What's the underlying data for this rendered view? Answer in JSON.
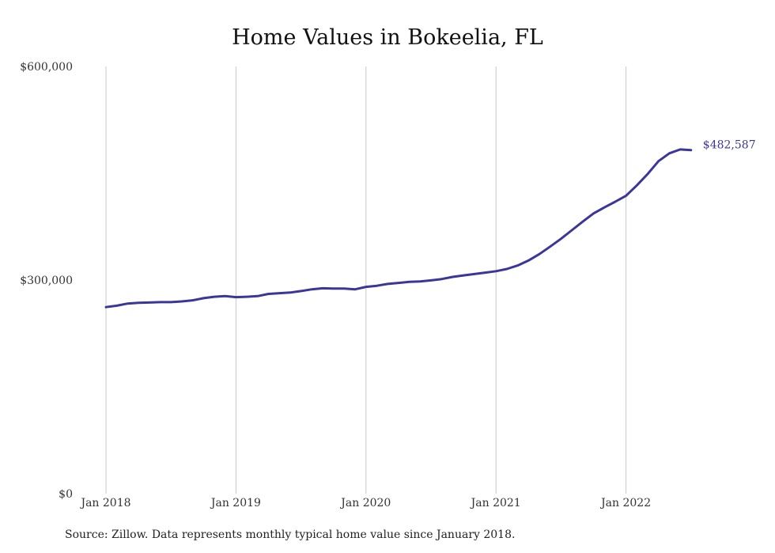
{
  "chart_data": {
    "type": "line",
    "title": "Home Values in Bokeelia, FL",
    "xlabel": "",
    "ylabel": "",
    "ylim": [
      0,
      600000
    ],
    "y_ticks": [
      {
        "value": 0,
        "label": "$0"
      },
      {
        "value": 300000,
        "label": "$300,000"
      },
      {
        "value": 600000,
        "label": "$600,000"
      }
    ],
    "x_ticks": [
      {
        "value": "2018-01",
        "label": "Jan 2018"
      },
      {
        "value": "2019-01",
        "label": "Jan 2019"
      },
      {
        "value": "2020-01",
        "label": "Jan 2020"
      },
      {
        "value": "2021-01",
        "label": "Jan 2021"
      },
      {
        "value": "2022-01",
        "label": "Jan 2022"
      }
    ],
    "grid": "vertical",
    "line_color": "#3b3699",
    "end_label": "$482,587",
    "source": "Source: Zillow. Data represents monthly typical home value since January 2018.",
    "series": [
      {
        "x": [
          "2018-01",
          "2018-02",
          "2018-03",
          "2018-04",
          "2018-05",
          "2018-06",
          "2018-07",
          "2018-08",
          "2018-09",
          "2018-10",
          "2018-11",
          "2018-12",
          "2019-01",
          "2019-02",
          "2019-03",
          "2019-04",
          "2019-05",
          "2019-06",
          "2019-07",
          "2019-08",
          "2019-09",
          "2019-10",
          "2019-11",
          "2019-12",
          "2020-01",
          "2020-02",
          "2020-03",
          "2020-04",
          "2020-05",
          "2020-06",
          "2020-07",
          "2020-08",
          "2020-09",
          "2020-10",
          "2020-11",
          "2020-12",
          "2021-01",
          "2021-02",
          "2021-03",
          "2021-04",
          "2021-05",
          "2021-06",
          "2021-07",
          "2021-08",
          "2021-09",
          "2021-10",
          "2021-11",
          "2021-12",
          "2022-01",
          "2022-02",
          "2022-03",
          "2022-04",
          "2022-05",
          "2022-06",
          "2022-07"
        ],
        "values": [
          262000,
          264000,
          267000,
          268000,
          268500,
          269000,
          269000,
          270000,
          271500,
          274500,
          276500,
          277500,
          276000,
          276500,
          277500,
          280500,
          281500,
          282500,
          284500,
          287000,
          288500,
          288000,
          288000,
          287000,
          290500,
          292000,
          294500,
          296000,
          297500,
          298000,
          299500,
          301500,
          304500,
          306500,
          308500,
          310500,
          312500,
          315500,
          320500,
          327500,
          336500,
          347000,
          358000,
          370000,
          382000,
          393500,
          402000,
          410000,
          418500,
          433000,
          449000,
          467000,
          478000,
          483500,
          482587
        ]
      }
    ]
  }
}
